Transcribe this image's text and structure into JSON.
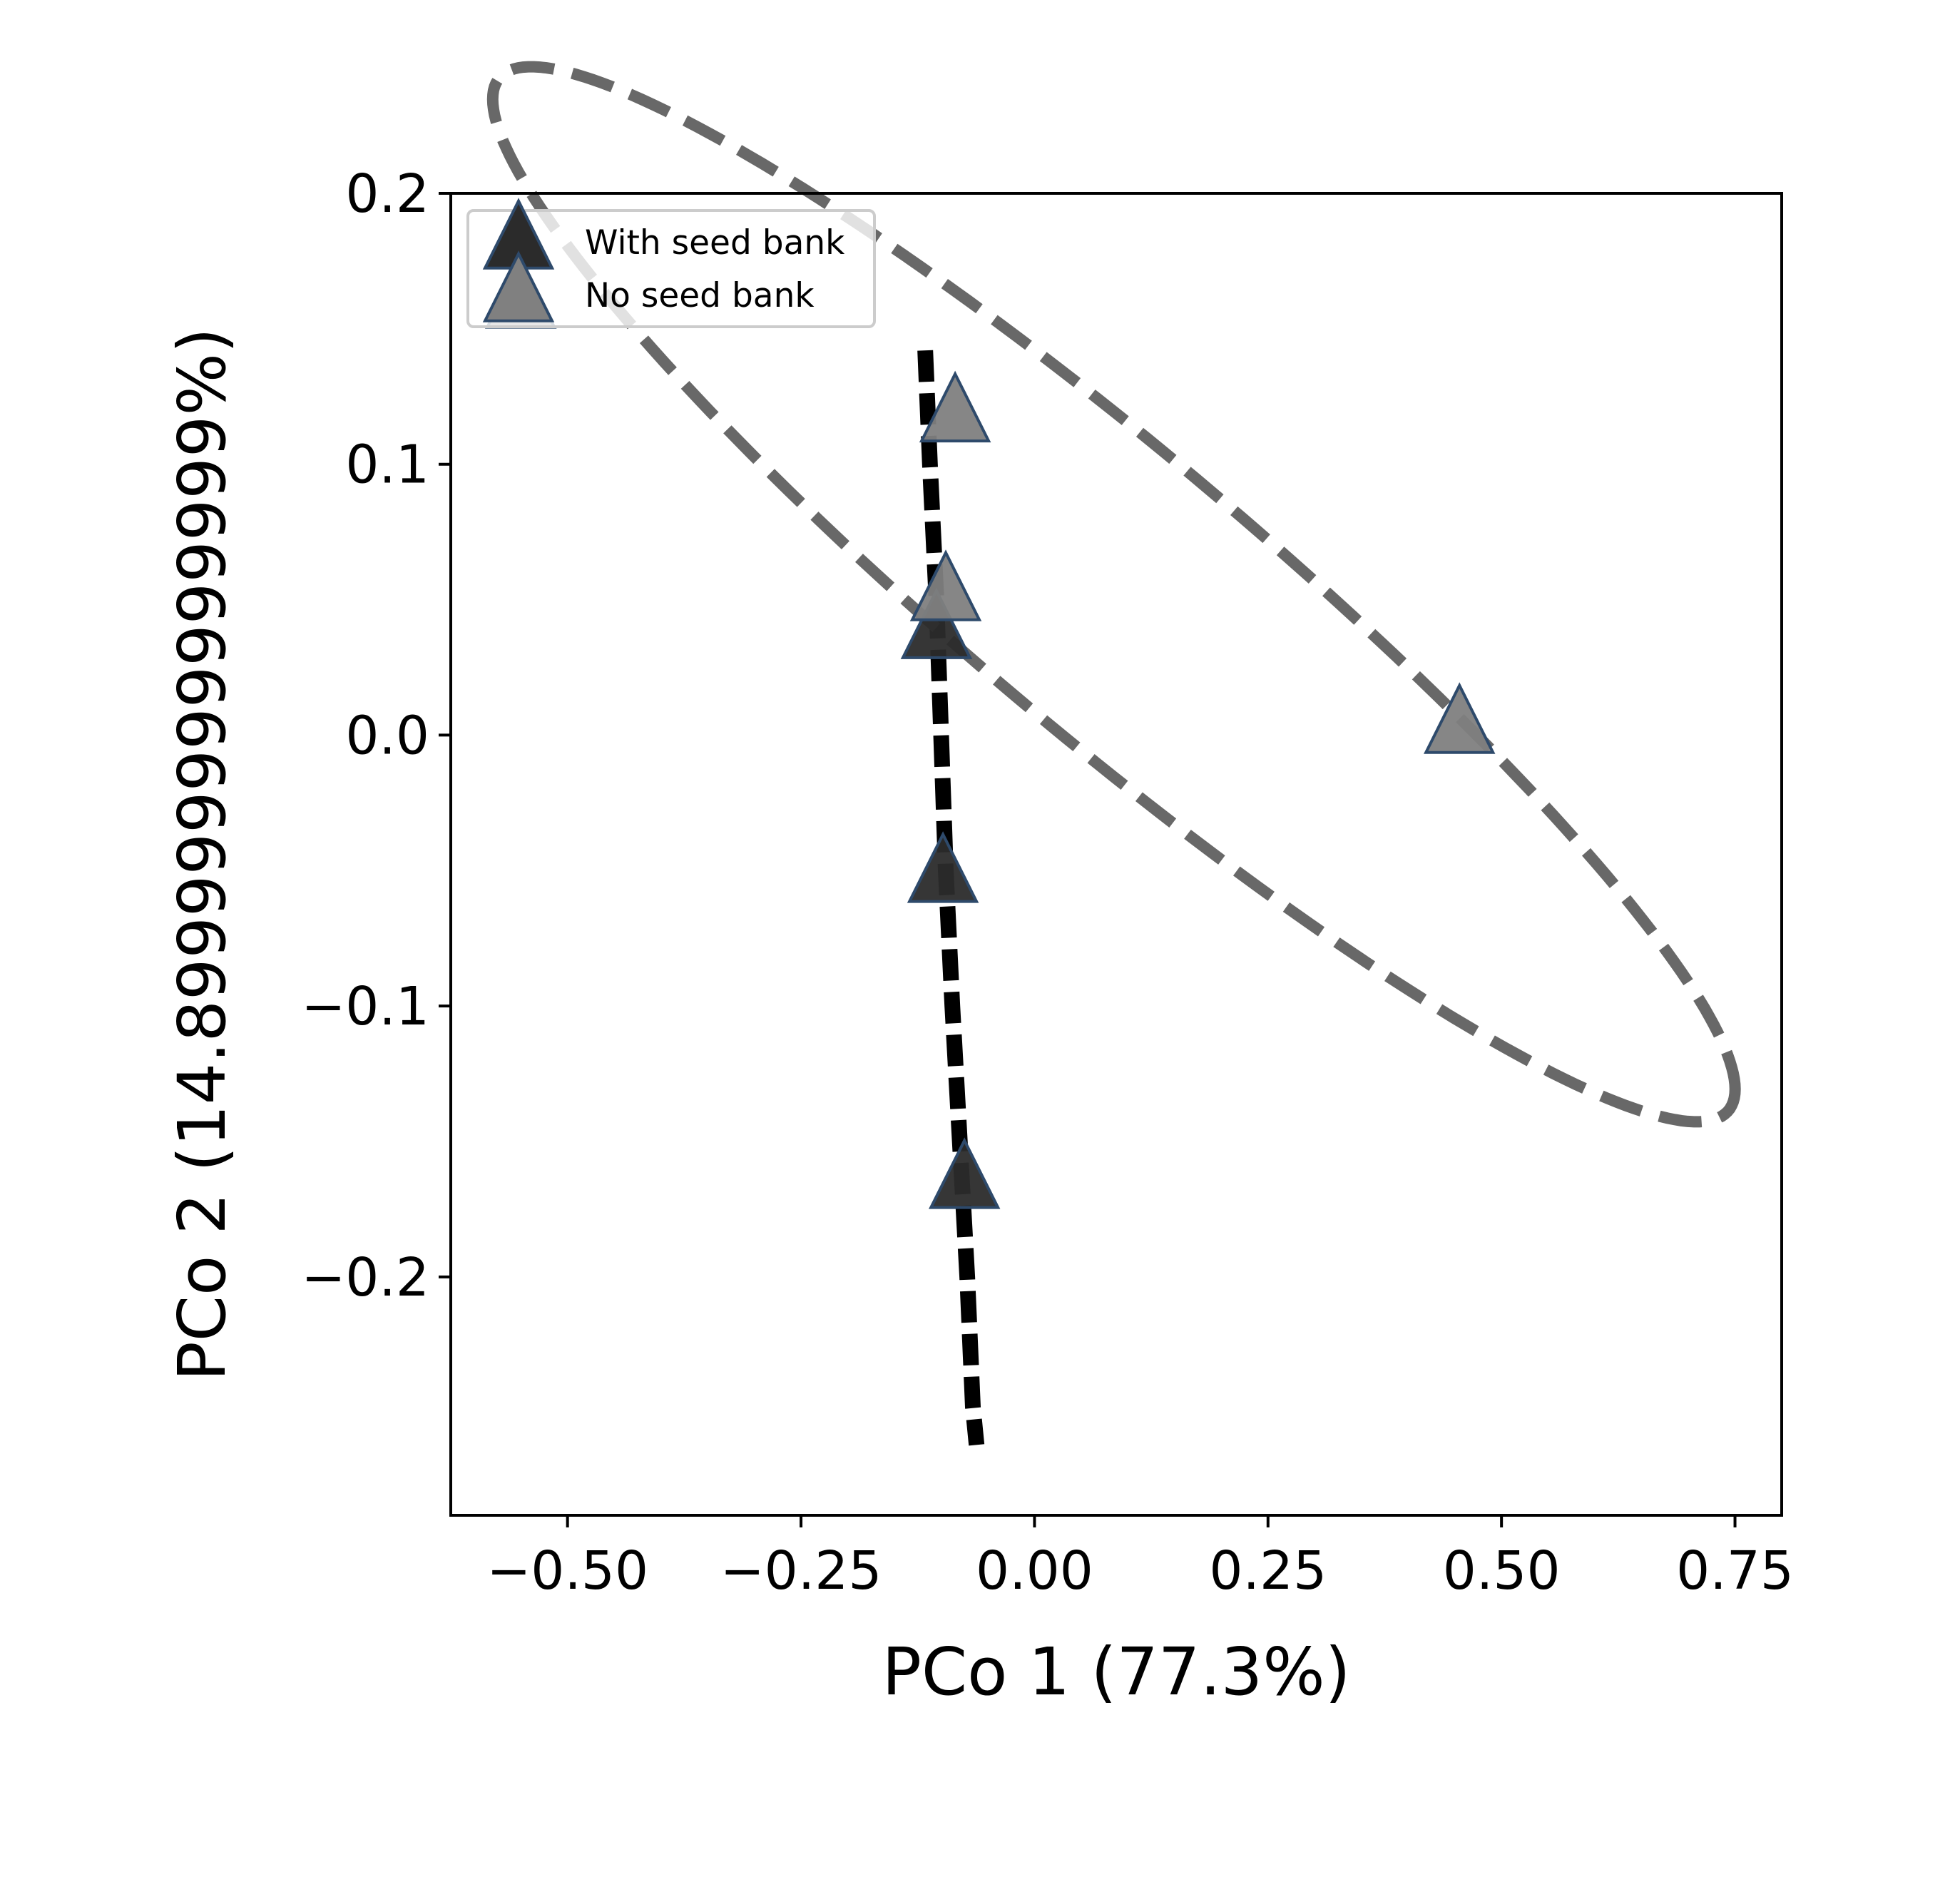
{
  "chart_data": {
    "type": "scatter",
    "title": "",
    "xlabel": "PCo 1 (77.3%)",
    "ylabel": "PCo 2 (14.899999999999999%)",
    "xlim": [
      -0.625,
      0.8
    ],
    "ylim": [
      -0.288,
      0.2
    ],
    "xticks": [
      -0.5,
      -0.25,
      0.0,
      0.25,
      0.5,
      0.75
    ],
    "xtick_labels": [
      "−0.50",
      "−0.25",
      "0.00",
      "0.25",
      "0.50",
      "0.75"
    ],
    "yticks": [
      -0.2,
      -0.1,
      0.0,
      0.1,
      0.2
    ],
    "ytick_labels": [
      "−0.2",
      "−0.1",
      "0.0",
      "0.1",
      "0.2"
    ],
    "grid": false,
    "legend_position": "upper-left",
    "marker": "triangle",
    "series": [
      {
        "name": "With seed bank",
        "color": "#2b2b2b",
        "edge_color": "#2e4a6b",
        "points": [
          {
            "x": -0.105,
            "y": 0.038
          },
          {
            "x": -0.098,
            "y": -0.052
          },
          {
            "x": -0.075,
            "y": -0.165
          }
        ],
        "ellipse": {
          "style": "dashed",
          "color": "#000000",
          "path": [
            [
              -0.117,
              0.142
            ],
            [
              -0.112,
              0.1
            ],
            [
              -0.105,
              0.05
            ],
            [
              -0.1,
              0.0
            ],
            [
              -0.095,
              -0.05
            ],
            [
              -0.088,
              -0.1
            ],
            [
              -0.08,
              -0.15
            ],
            [
              -0.072,
              -0.2
            ],
            [
              -0.066,
              -0.248
            ],
            [
              -0.062,
              -0.262
            ]
          ]
        }
      },
      {
        "name": "No seed bank",
        "color": "#808080",
        "edge_color": "#2e4a6b",
        "points": [
          {
            "x": -0.55,
            "y": 0.16
          },
          {
            "x": -0.085,
            "y": 0.118
          },
          {
            "x": -0.095,
            "y": 0.052
          },
          {
            "x": 0.455,
            "y": 0.003
          }
        ],
        "ellipse": {
          "style": "dashed",
          "color": "#686868",
          "center": [
            0.085,
            0.052
          ],
          "semi_axes": [
            0.69,
            0.065
          ],
          "rotation_deg": -15.5
        }
      }
    ]
  }
}
